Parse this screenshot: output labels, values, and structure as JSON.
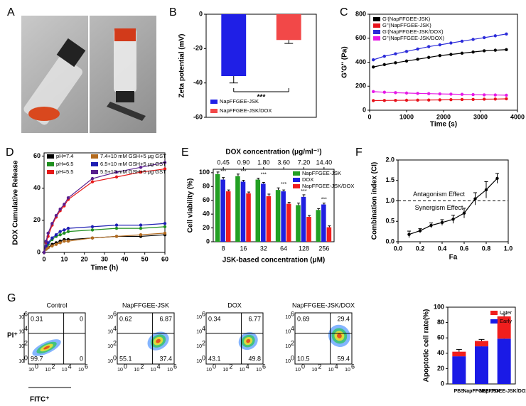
{
  "figure": {
    "panel_a": "A",
    "panel_g": "G",
    "pi_label": "PI⁺",
    "fitc_label": "FITC⁺",
    "flow_tick_base": "10",
    "flow_tick_exps": [
      "0",
      "2",
      "4",
      "6"
    ],
    "flow_plots": [
      {
        "title": "Control",
        "quadrants": [
          0.31,
          0,
          99.7,
          0
        ]
      },
      {
        "title": "NapFFGEE-JSK",
        "quadrants": [
          0.62,
          6.87,
          55.1,
          37.4
        ]
      },
      {
        "title": "DOX",
        "quadrants": [
          0.34,
          6.77,
          43.1,
          49.8
        ]
      },
      {
        "title": "NapFFGEE-JSK/DOX",
        "quadrants": [
          0.69,
          29.4,
          10.5,
          59.4
        ]
      }
    ]
  },
  "chart_data": [
    {
      "type": "bar",
      "panel": "B",
      "ylabel": "Zeta potential (mV)",
      "categories": [
        "NapFFGEE-JSK",
        "NapFFGEE-JSK/DOX"
      ],
      "values": [
        -36,
        -15
      ],
      "errors": [
        4,
        2
      ],
      "colors": [
        "#1f1fe6",
        "#f24848"
      ],
      "ylim": [
        -60,
        0
      ],
      "yticks": [
        0,
        -20,
        -40,
        -60
      ],
      "annotation": "***"
    },
    {
      "type": "line",
      "panel": "C",
      "xlabel": "Time (s)",
      "ylabel": "G'G'' (Pa)",
      "x": [
        100,
        400,
        700,
        1000,
        1300,
        1600,
        1900,
        2200,
        2500,
        2800,
        3100,
        3400,
        3700
      ],
      "xlim": [
        0,
        4000
      ],
      "xticks": [
        0,
        1000,
        2000,
        3000,
        4000
      ],
      "ylim": [
        0,
        800
      ],
      "yticks": [
        0,
        200,
        400,
        600,
        800
      ],
      "series": [
        {
          "name": "G'(NapFFGEE-JSK)",
          "color": "#000000",
          "values": [
            360,
            380,
            395,
            410,
            425,
            440,
            455,
            465,
            475,
            485,
            495,
            500,
            505
          ]
        },
        {
          "name": "G''(NapFFGEE-JSK)",
          "color": "#e8121b",
          "values": [
            80,
            81,
            82,
            83,
            84,
            85,
            86,
            88,
            89,
            90,
            92,
            93,
            95
          ]
        },
        {
          "name": "G'(NapFFGEE-JSK/DOX)",
          "color": "#2b2bd9",
          "values": [
            420,
            450,
            470,
            490,
            510,
            530,
            545,
            560,
            575,
            590,
            605,
            620,
            635
          ]
        },
        {
          "name": "G''(NapFFGEE-JSK/DOX)",
          "color": "#e619e6",
          "values": [
            155,
            150,
            146,
            143,
            140,
            138,
            136,
            134,
            132,
            130,
            128,
            127,
            125
          ]
        }
      ]
    },
    {
      "type": "line",
      "panel": "D",
      "xlabel": "Time (h)",
      "ylabel": "DOX Cumulative Release",
      "x": [
        0,
        1,
        2,
        4,
        6,
        8,
        10,
        12,
        24,
        36,
        48,
        60
      ],
      "xlim": [
        0,
        60
      ],
      "xticks": [
        0,
        10,
        20,
        30,
        40,
        50,
        60
      ],
      "ylim": [
        0,
        62
      ],
      "yticks": [
        0,
        20,
        40,
        60
      ],
      "series": [
        {
          "name": "pH=7.4",
          "color": "#000000",
          "values": [
            0,
            2,
            3,
            5,
            6,
            7,
            8,
            8,
            9,
            10,
            10,
            11
          ]
        },
        {
          "name": "pH=6.5",
          "color": "#1f8f1f",
          "values": [
            0,
            3,
            5,
            8,
            10,
            11,
            12,
            13,
            14,
            15,
            15,
            16
          ]
        },
        {
          "name": "pH=5.5",
          "color": "#e61919",
          "values": [
            0,
            6,
            10,
            17,
            22,
            26,
            29,
            33,
            44,
            47,
            50,
            52
          ]
        },
        {
          "name": "7.4+10 mM GSH+5 μg GST",
          "color": "#b36b1f",
          "values": [
            0,
            2,
            3,
            4,
            5,
            6,
            7,
            7,
            9,
            10,
            11,
            12
          ]
        },
        {
          "name": "6.5+10 mM GSH+5 μg GST",
          "color": "#1f1fb3",
          "values": [
            0,
            4,
            6,
            9,
            11,
            13,
            14,
            15,
            16,
            17,
            17,
            18
          ]
        },
        {
          "name": "5.5+10 mM GSH+5 μg GST",
          "color": "#5a1f8f",
          "values": [
            0,
            7,
            12,
            18,
            23,
            27,
            30,
            34,
            46,
            50,
            53,
            56
          ]
        }
      ]
    },
    {
      "type": "bar",
      "panel": "E",
      "xlabel": "JSK-based concentration (μM)",
      "ylabel": "Cell viability (%)",
      "top_xlabel": "DOX concentration (μg/ml⁻¹)",
      "categories": [
        "8",
        "16",
        "32",
        "64",
        "128",
        "256"
      ],
      "top_categories": [
        "0.45",
        "0.90",
        "1.80",
        "3.60",
        "7.20",
        "14.40"
      ],
      "ylim": [
        0,
        105
      ],
      "yticks": [
        0,
        20,
        40,
        60,
        80,
        100
      ],
      "sig_label": "***",
      "series": [
        {
          "name": "NapFFGEE-JSK",
          "color": "#23a023",
          "values": [
            98,
            95,
            90,
            75,
            53,
            46
          ],
          "errors": [
            3,
            3,
            2,
            3,
            3,
            2
          ]
        },
        {
          "name": "DOX",
          "color": "#2020e0",
          "values": [
            90,
            87,
            84,
            73,
            65,
            54
          ],
          "errors": [
            3,
            2,
            2,
            2,
            3,
            2
          ]
        },
        {
          "name": "NapFFGEE-JSK/DOX",
          "color": "#f01e1e",
          "values": [
            73,
            70,
            66,
            55,
            36,
            21
          ],
          "errors": [
            2,
            2,
            3,
            2,
            2,
            2
          ]
        }
      ]
    },
    {
      "type": "line",
      "panel": "F",
      "xlabel": "Fa",
      "ylabel": "Combination index (CI)",
      "x": [
        0.1,
        0.2,
        0.3,
        0.4,
        0.5,
        0.6,
        0.7,
        0.8,
        0.9
      ],
      "xlim": [
        0,
        1
      ],
      "xticks": [
        {
          "value": 0,
          "label": "0.0"
        },
        0.2,
        0.4,
        0.6,
        0.8,
        {
          "value": 1,
          "label": "1.0"
        }
      ],
      "ylim": [
        0,
        2
      ],
      "yticks": [
        {
          "value": 0,
          "label": "0.0"
        },
        0.5,
        {
          "value": 1,
          "label": "1.0"
        },
        1.5,
        {
          "value": 2,
          "label": "2.0"
        }
      ],
      "reference_line": 1,
      "annotations": [
        {
          "text": "Antagonism Effect",
          "color": "#e01010"
        },
        {
          "text": "Synergism Effect",
          "color": "#1010e0"
        }
      ],
      "series": [
        {
          "color": "#000000",
          "values": [
            0.18,
            0.27,
            0.4,
            0.47,
            0.55,
            0.7,
            1.05,
            1.27,
            1.55
          ],
          "errors": [
            0.08,
            0.05,
            0.06,
            0.07,
            0.1,
            0.12,
            0.15,
            0.2,
            0.12
          ]
        }
      ]
    },
    {
      "type": "bar",
      "stacked": true,
      "ylabel": "Apoptotic cell rate(%)",
      "categories": [
        "PBS",
        "NapFFGEE-JSK",
        "NapFFGEE-JSK/DOX"
      ],
      "ylim": [
        0,
        100
      ],
      "yticks": [
        0,
        20,
        40,
        60,
        80,
        100
      ],
      "series": [
        {
          "name": "Early",
          "color": "#1a1ae6",
          "values": [
            36,
            49,
            59
          ],
          "errors": [
            3,
            2,
            4
          ]
        },
        {
          "name": "Later",
          "color": "#f01e1e",
          "values": [
            6,
            7,
            29
          ],
          "errors": [
            3,
            2,
            3
          ]
        }
      ]
    }
  ]
}
